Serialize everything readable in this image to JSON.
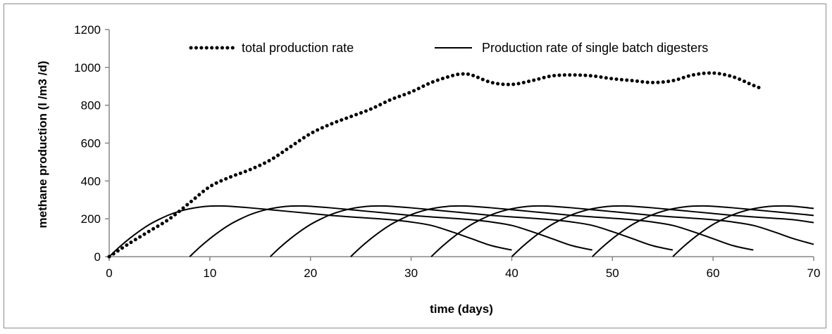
{
  "chart_data": {
    "type": "line",
    "title": "",
    "xlabel": "time (days)",
    "ylabel": "methane production (l /m3 /d)",
    "xlim": [
      0,
      70
    ],
    "ylim": [
      0,
      1200
    ],
    "xticks": [
      0,
      10,
      20,
      30,
      40,
      50,
      60,
      70
    ],
    "yticks": [
      0,
      200,
      400,
      600,
      800,
      1000,
      1200
    ],
    "grid": false,
    "legend_position": "top",
    "series": [
      {
        "name": "total production rate",
        "style": "dotted",
        "color": "#000000",
        "x": [
          0,
          2,
          4,
          6,
          8,
          10,
          12,
          14,
          16,
          18,
          20,
          22,
          24,
          26,
          28,
          30,
          32,
          34,
          35,
          36,
          38,
          40,
          42,
          44,
          46,
          48,
          50,
          52,
          54,
          56,
          58,
          60,
          62,
          64,
          65
        ],
        "y": [
          0,
          70,
          135,
          200,
          285,
          370,
          420,
          460,
          510,
          580,
          650,
          700,
          740,
          780,
          830,
          870,
          920,
          955,
          965,
          960,
          920,
          910,
          930,
          955,
          960,
          955,
          940,
          930,
          920,
          930,
          960,
          970,
          950,
          905,
          885
        ]
      },
      {
        "name": "Production rate of single batch digesters",
        "style": "solid",
        "color": "#000000",
        "curves": [
          {
            "x": [
              0,
              1,
              2,
              3,
              4,
              5,
              6,
              7,
              8,
              9,
              10,
              11,
              12,
              14,
              16,
              18,
              20,
              22,
              24,
              26,
              28,
              30,
              32,
              34,
              36,
              38,
              40
            ],
            "y": [
              0,
              50,
              95,
              135,
              170,
              198,
              222,
              240,
              253,
              262,
              267,
              268,
              266,
              258,
              248,
              238,
              228,
              218,
              210,
              203,
              195,
              183,
              165,
              132,
              95,
              58,
              35
            ]
          },
          {
            "x": [
              8,
              9,
              10,
              11,
              12,
              13,
              14,
              15,
              16,
              17,
              18,
              19,
              20,
              22,
              24,
              26,
              28,
              30,
              32,
              34,
              36,
              38,
              40,
              42,
              44,
              46,
              48
            ],
            "y": [
              0,
              50,
              95,
              135,
              170,
              198,
              222,
              240,
              253,
              262,
              267,
              268,
              266,
              258,
              248,
              238,
              228,
              218,
              210,
              203,
              195,
              183,
              165,
              132,
              95,
              58,
              35
            ]
          },
          {
            "x": [
              16,
              17,
              18,
              19,
              20,
              21,
              22,
              23,
              24,
              25,
              26,
              27,
              28,
              30,
              32,
              34,
              36,
              38,
              40,
              42,
              44,
              46,
              48,
              50,
              52,
              54,
              56
            ],
            "y": [
              0,
              50,
              95,
              135,
              170,
              198,
              222,
              240,
              253,
              262,
              267,
              268,
              266,
              258,
              248,
              238,
              228,
              218,
              210,
              203,
              195,
              183,
              165,
              132,
              95,
              58,
              35
            ]
          },
          {
            "x": [
              24,
              25,
              26,
              27,
              28,
              29,
              30,
              31,
              32,
              33,
              34,
              35,
              36,
              38,
              40,
              42,
              44,
              46,
              48,
              50,
              52,
              54,
              56,
              58,
              60,
              62,
              64
            ],
            "y": [
              0,
              50,
              95,
              135,
              170,
              198,
              222,
              240,
              253,
              262,
              267,
              268,
              266,
              258,
              248,
              238,
              228,
              218,
              210,
              203,
              195,
              183,
              165,
              132,
              95,
              58,
              35
            ]
          },
          {
            "x": [
              32,
              33,
              34,
              35,
              36,
              37,
              38,
              39,
              40,
              41,
              42,
              43,
              44,
              46,
              48,
              50,
              52,
              54,
              56,
              58,
              60,
              62,
              64,
              66,
              68,
              70
            ],
            "y": [
              0,
              50,
              95,
              135,
              170,
              198,
              222,
              240,
              253,
              262,
              267,
              268,
              266,
              258,
              248,
              238,
              228,
              218,
              210,
              203,
              195,
              183,
              165,
              132,
              95,
              65
            ]
          },
          {
            "x": [
              40,
              41,
              42,
              43,
              44,
              45,
              46,
              47,
              48,
              49,
              50,
              51,
              52,
              54,
              56,
              58,
              60,
              62,
              64,
              66,
              68,
              70
            ],
            "y": [
              0,
              50,
              95,
              135,
              170,
              198,
              222,
              240,
              253,
              262,
              267,
              268,
              266,
              258,
              248,
              238,
              228,
              218,
              210,
              203,
              195,
              180
            ]
          },
          {
            "x": [
              48,
              49,
              50,
              51,
              52,
              53,
              54,
              55,
              56,
              57,
              58,
              59,
              60,
              62,
              64,
              66,
              68,
              70
            ],
            "y": [
              0,
              50,
              95,
              135,
              170,
              198,
              222,
              240,
              253,
              262,
              267,
              268,
              266,
              258,
              248,
              238,
              228,
              218
            ]
          },
          {
            "x": [
              56,
              57,
              58,
              59,
              60,
              61,
              62,
              63,
              64,
              65,
              66,
              67,
              68,
              70
            ],
            "y": [
              0,
              50,
              95,
              135,
              170,
              198,
              222,
              240,
              253,
              262,
              267,
              268,
              266,
              255
            ]
          }
        ]
      }
    ]
  }
}
